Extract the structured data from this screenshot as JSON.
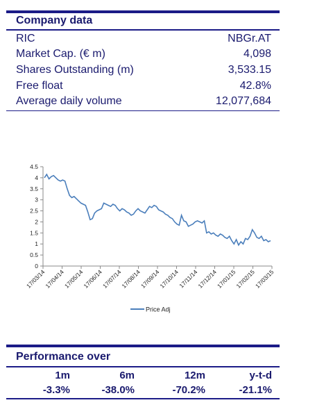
{
  "company": {
    "title": "Company data",
    "rows": [
      {
        "label": "RIC",
        "value": "NBGr.AT"
      },
      {
        "label": "Market Cap. (€ m)",
        "value": "4,098"
      },
      {
        "label": "Shares Outstanding (m)",
        "value": "3,533.15"
      },
      {
        "label": "Free float",
        "value": "42.8%"
      },
      {
        "label": "Average daily volume",
        "value": "12,077,684"
      }
    ]
  },
  "chart_data": {
    "type": "line",
    "title": "",
    "xlabel": "",
    "ylabel": "",
    "ylim": [
      0,
      4.5
    ],
    "yticks": [
      "0",
      "0.5",
      "1",
      "1.5",
      "2",
      "2.5",
      "3",
      "3.5",
      "4",
      "4.5"
    ],
    "xticks": [
      "17/03/14",
      "17/04/14",
      "17/05/14",
      "17/06/14",
      "17/07/14",
      "17/08/14",
      "17/09/14",
      "17/10/14",
      "17/11/14",
      "17/12/14",
      "17/01/15",
      "17/02/15",
      "17/03/15"
    ],
    "grid": false,
    "legend": "bottom-center",
    "series": [
      {
        "name": "Price Adj",
        "color": "#4a7ebb",
        "values": [
          4.0,
          4.15,
          3.95,
          4.05,
          4.1,
          4.0,
          3.9,
          3.85,
          3.9,
          3.85,
          3.5,
          3.2,
          3.1,
          3.15,
          3.05,
          2.95,
          2.85,
          2.8,
          2.75,
          2.45,
          2.1,
          2.15,
          2.4,
          2.5,
          2.55,
          2.6,
          2.85,
          2.8,
          2.75,
          2.7,
          2.8,
          2.75,
          2.6,
          2.5,
          2.6,
          2.55,
          2.45,
          2.4,
          2.3,
          2.35,
          2.5,
          2.6,
          2.5,
          2.45,
          2.4,
          2.55,
          2.7,
          2.65,
          2.75,
          2.7,
          2.55,
          2.5,
          2.45,
          2.35,
          2.3,
          2.2,
          2.15,
          2.0,
          1.9,
          1.85,
          2.3,
          2.05,
          2.0,
          1.8,
          1.85,
          1.9,
          2.0,
          2.05,
          2.0,
          1.95,
          2.05,
          1.5,
          1.55,
          1.45,
          1.5,
          1.4,
          1.35,
          1.45,
          1.4,
          1.3,
          1.25,
          1.35,
          1.15,
          1.0,
          1.2,
          0.95,
          1.1,
          1.0,
          1.25,
          1.2,
          1.35,
          1.65,
          1.5,
          1.3,
          1.25,
          1.35,
          1.15,
          1.2,
          1.1,
          1.15
        ]
      }
    ]
  },
  "performance": {
    "title": "Performance over",
    "headers": [
      "1m",
      "6m",
      "12m",
      "y-t-d"
    ],
    "values": [
      "-3.3%",
      "-38.0%",
      "-70.2%",
      "-21.1%"
    ]
  }
}
